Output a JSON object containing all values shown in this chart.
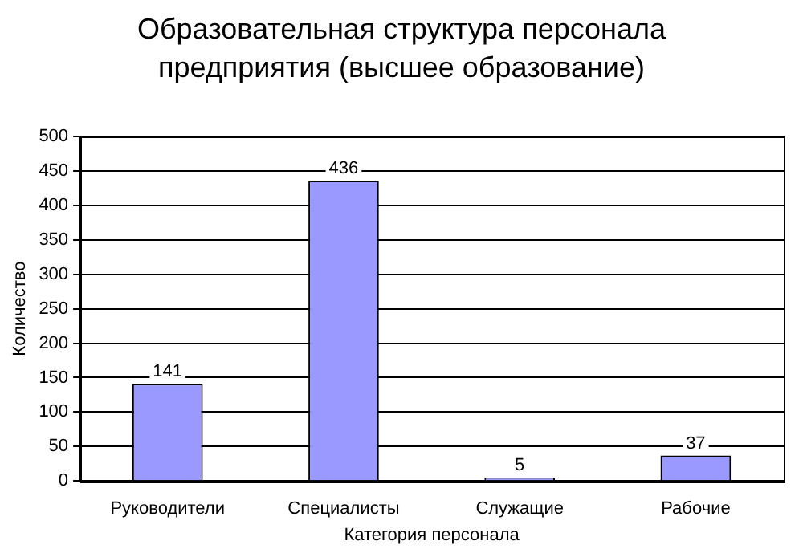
{
  "chart_data": {
    "type": "bar",
    "title": "Образовательная структура персонала предприятия (высшее образование)",
    "xlabel": "Категория персонала",
    "ylabel": "Количество",
    "categories": [
      "Руководители",
      "Специалисты",
      "Служащие",
      "Рабочие"
    ],
    "values": [
      141,
      436,
      5,
      37
    ],
    "color": "#9999ff",
    "ylim": [
      0,
      500
    ],
    "yticks": [
      0,
      50,
      100,
      150,
      200,
      250,
      300,
      350,
      400,
      450,
      500
    ],
    "grid": "y",
    "data_labels": true,
    "legend": false
  }
}
